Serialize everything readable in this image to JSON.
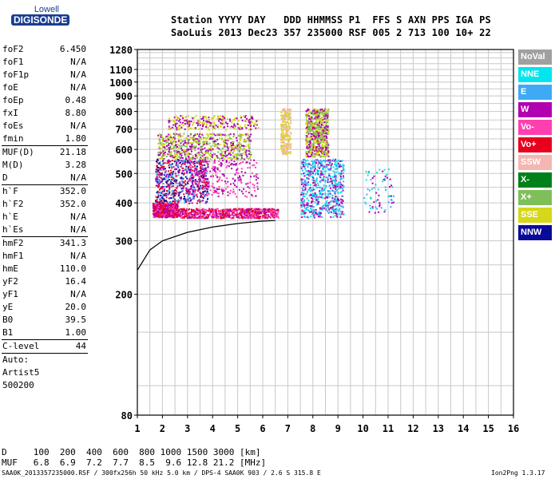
{
  "logo": {
    "top": "Lowell",
    "bottom": "DIGISONDE"
  },
  "header": {
    "line1": "Station YYYY DAY   DDD HHMMSS P1  FFS S AXN PPS IGA PS",
    "line2": "SaoLuis 2013 Dec23 357 235000 RSF 005 2 713 100 10+ 22"
  },
  "params": {
    "group1": [
      {
        "name": "foF2",
        "value": "6.450"
      },
      {
        "name": "foF1",
        "value": "N/A"
      },
      {
        "name": "foF1p",
        "value": "N/A"
      },
      {
        "name": "foE",
        "value": "N/A"
      },
      {
        "name": "foEp",
        "value": "0.48"
      },
      {
        "name": "fxI",
        "value": "8.80"
      },
      {
        "name": "foEs",
        "value": "N/A"
      },
      {
        "name": "fmin",
        "value": "1.80"
      }
    ],
    "group2": [
      {
        "name": "MUF(D)",
        "value": "21.18"
      },
      {
        "name": "M(D)",
        "value": "3.28"
      },
      {
        "name": "D",
        "value": "N/A"
      }
    ],
    "group3": [
      {
        "name": "h`F",
        "value": "352.0"
      },
      {
        "name": "h`F2",
        "value": "352.0"
      },
      {
        "name": "h`E",
        "value": "N/A"
      },
      {
        "name": "h`Es",
        "value": "N/A"
      }
    ],
    "group4": [
      {
        "name": "hmF2",
        "value": "341.3"
      },
      {
        "name": "hmF1",
        "value": "N/A"
      },
      {
        "name": "hmE",
        "value": "110.0"
      },
      {
        "name": "yF2",
        "value": "16.4"
      },
      {
        "name": "yF1",
        "value": "N/A"
      },
      {
        "name": "yE",
        "value": "20.0"
      },
      {
        "name": "B0",
        "value": "39.5"
      },
      {
        "name": "B1",
        "value": "1.00"
      }
    ],
    "clevel": {
      "name": "C-level",
      "value": "44"
    },
    "auto": [
      "Auto:",
      "Artist5",
      "500200"
    ]
  },
  "legend": [
    {
      "label": "NoVal",
      "color": "#a0a0a0"
    },
    {
      "label": "NNE",
      "color": "#00e5ee"
    },
    {
      "label": "E",
      "color": "#3fa9f5"
    },
    {
      "label": "W",
      "color": "#b000b0"
    },
    {
      "label": "Vo-",
      "color": "#ff3fb0"
    },
    {
      "label": "Vo+",
      "color": "#e8001c"
    },
    {
      "label": "SSW",
      "color": "#f4b6b0"
    },
    {
      "label": "X-",
      "color": "#00801a"
    },
    {
      "label": "X+",
      "color": "#7fbf5a"
    },
    {
      "label": "SSE",
      "color": "#d6d61a"
    },
    {
      "label": "NNW",
      "color": "#0a0a9a"
    }
  ],
  "footer": {
    "dist_line": "D     100  200  400  600  800 1000 1500 3000 [km]",
    "muf_line": "MUF   6.8  6.9  7.2  7.7  8.5  9.6 12.8 21.2 [MHz]",
    "file_line": "SAA0K_2013357235000.RSF / 300fx256h 50 kHz 5.0 km / DPS-4 SAA0K 903 / 2.6 S 315.8 E",
    "version": "Ion2Png 1.3.17"
  },
  "chart_data": {
    "type": "scatter",
    "title": "",
    "xlabel": "",
    "ylabel": "",
    "xlim": [
      1,
      16
    ],
    "ylim": [
      80,
      1280
    ],
    "y_scale": "log",
    "grid": true,
    "xticks": [
      1,
      2,
      3,
      4,
      5,
      6,
      7,
      8,
      9,
      10,
      11,
      12,
      13,
      14,
      15,
      16
    ],
    "yticks": [
      80,
      200,
      300,
      400,
      500,
      600,
      700,
      800,
      900,
      1000,
      1100,
      1280
    ],
    "clusters": [
      {
        "x": [
          1.6,
          2.6
        ],
        "y": [
          360,
          400
        ],
        "colors": [
          "Vo+",
          "W",
          "Vo-"
        ],
        "density": "dense"
      },
      {
        "x": [
          2.6,
          6.6
        ],
        "y": [
          358,
          385
        ],
        "colors": [
          "Vo+",
          "W",
          "Vo-"
        ],
        "density": "dense"
      },
      {
        "x": [
          1.7,
          3.8
        ],
        "y": [
          400,
          560
        ],
        "colors": [
          "Vo+",
          "W",
          "NNW",
          "E"
        ],
        "density": "dense"
      },
      {
        "x": [
          3.0,
          5.8
        ],
        "y": [
          420,
          560
        ],
        "colors": [
          "W",
          "Vo-"
        ],
        "density": "medium"
      },
      {
        "x": [
          1.8,
          5.5
        ],
        "y": [
          560,
          680
        ],
        "colors": [
          "SSE",
          "X+",
          "W"
        ],
        "density": "dense"
      },
      {
        "x": [
          2.2,
          5.8
        ],
        "y": [
          700,
          780
        ],
        "colors": [
          "W",
          "SSE"
        ],
        "density": "medium"
      },
      {
        "x": [
          6.7,
          7.1
        ],
        "y": [
          580,
          820
        ],
        "colors": [
          "SSE",
          "SSW"
        ],
        "density": "medium"
      },
      {
        "x": [
          7.7,
          8.6
        ],
        "y": [
          570,
          820
        ],
        "colors": [
          "SSE",
          "X+",
          "W"
        ],
        "density": "dense"
      },
      {
        "x": [
          7.5,
          9.2
        ],
        "y": [
          360,
          560
        ],
        "colors": [
          "W",
          "E",
          "NNE"
        ],
        "density": "dense"
      },
      {
        "x": [
          10.0,
          11.2
        ],
        "y": [
          360,
          520
        ],
        "colors": [
          "W",
          "E",
          "NNE"
        ],
        "density": "sparse"
      }
    ],
    "trace": {
      "x": [
        1.0,
        1.5,
        2.0,
        3.0,
        4.0,
        5.0,
        5.9,
        6.5
      ],
      "y": [
        240,
        280,
        300,
        320,
        333,
        342,
        348,
        350
      ],
      "color": "#000000"
    }
  }
}
